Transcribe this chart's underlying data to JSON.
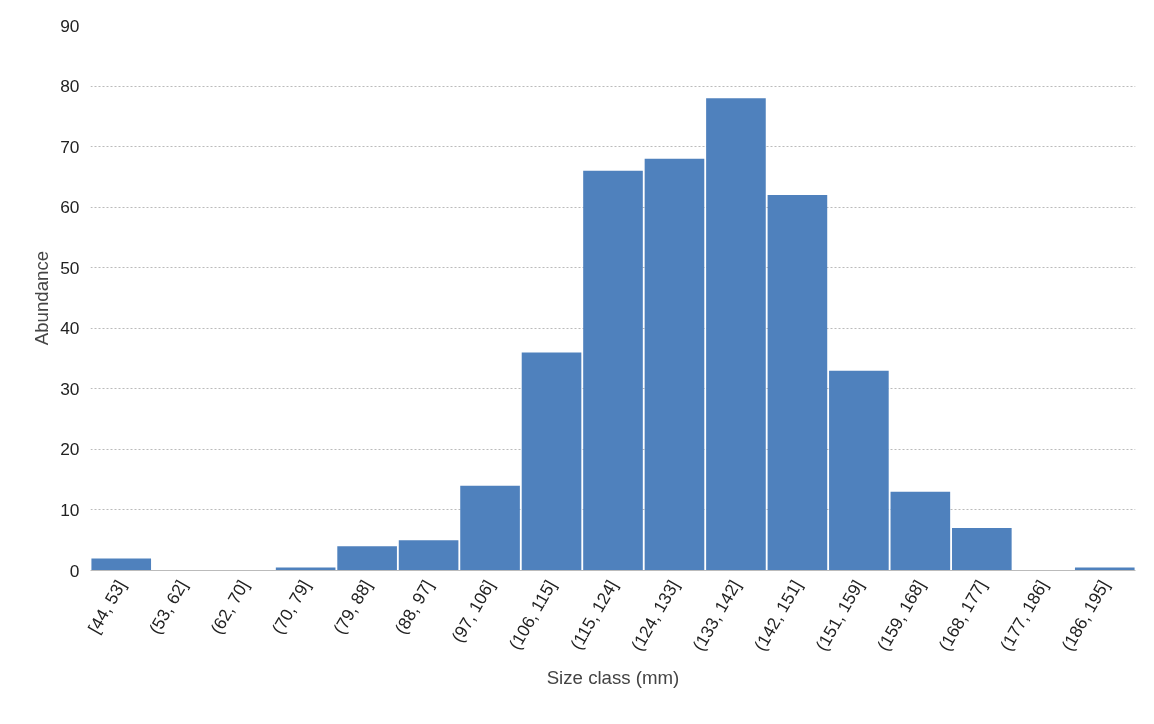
{
  "chart_data": {
    "type": "bar",
    "xlabel": "Size class (mm)",
    "ylabel": "Abundance",
    "categories": [
      "[44, 53]",
      "(53, 62]",
      "(62, 70]",
      "(70, 79]",
      "(79, 88]",
      "(88, 97]",
      "(97, 106]",
      "(106, 115]",
      "(115, 124]",
      "(124, 133]",
      "(133, 142]",
      "(142, 151]",
      "(151, 159]",
      "(159, 168]",
      "(168, 177]",
      "(177, 186]",
      "(186, 195]"
    ],
    "values": [
      2,
      0,
      0,
      0.5,
      4,
      5,
      14,
      36,
      66,
      68,
      78,
      62,
      33,
      13,
      7,
      0,
      0.5
    ],
    "color": "#4f81bd",
    "ylim": [
      0,
      90
    ],
    "yticks": [
      0,
      10,
      20,
      30,
      40,
      50,
      60,
      70,
      80,
      90
    ],
    "grid": "y"
  }
}
